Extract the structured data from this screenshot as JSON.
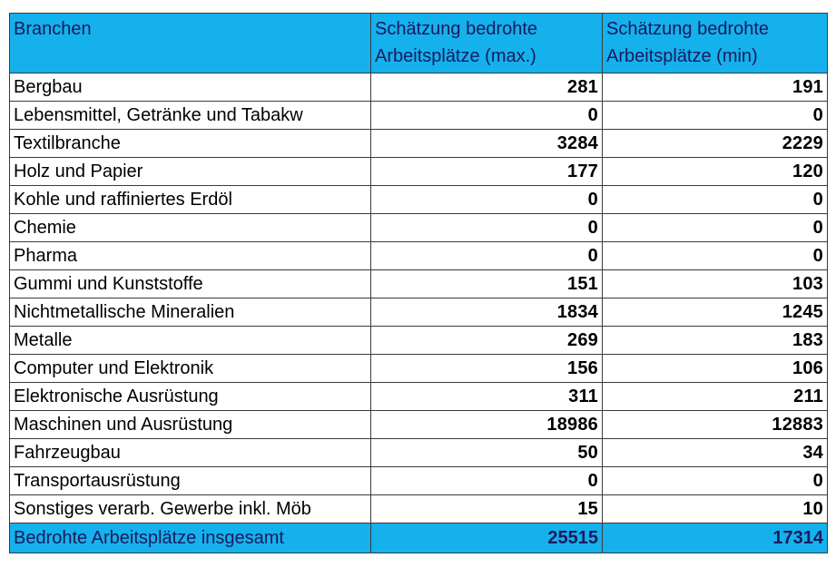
{
  "table": {
    "headers": [
      "Branchen",
      "Schätzung bedrohte Arbeitsplätze (max.)",
      "Schätzung bedrohte Arbeitsplätze (min)"
    ],
    "rows": [
      {
        "branche": "Bergbau",
        "max": "281",
        "min": "191"
      },
      {
        "branche": "Lebensmittel, Getränke und Tabakw",
        "max": "0",
        "min": "0"
      },
      {
        "branche": "Textilbranche",
        "max": "3284",
        "min": "2229"
      },
      {
        "branche": "Holz und Papier",
        "max": "177",
        "min": "120"
      },
      {
        "branche": "Kohle und raffiniertes Erdöl",
        "max": "0",
        "min": "0"
      },
      {
        "branche": "Chemie",
        "max": "0",
        "min": "0"
      },
      {
        "branche": "Pharma",
        "max": "0",
        "min": "0"
      },
      {
        "branche": "Gummi und Kunststoffe",
        "max": "151",
        "min": "103"
      },
      {
        "branche": "Nichtmetallische Mineralien",
        "max": "1834",
        "min": "1245"
      },
      {
        "branche": "Metalle",
        "max": "269",
        "min": "183"
      },
      {
        "branche": "Computer und Elektronik",
        "max": "156",
        "min": "106"
      },
      {
        "branche": "Elektronische Ausrüstung",
        "max": "311",
        "min": "211"
      },
      {
        "branche": "Maschinen und Ausrüstung",
        "max": "18986",
        "min": "12883"
      },
      {
        "branche": "Fahrzeugbau",
        "max": "50",
        "min": "34"
      },
      {
        "branche": "Transportausrüstung",
        "max": "0",
        "min": "0"
      },
      {
        "branche": "Sonstiges verarb. Gewerbe inkl. Möb",
        "max": "15",
        "min": "10"
      }
    ],
    "total": {
      "label": "Bedrohte Arbeitsplätze insgesamt",
      "max": "25515",
      "min": "17314"
    }
  },
  "colors": {
    "header_bg": "#15b1ec",
    "header_text": "#1a1a5e",
    "border": "#3a3a3a"
  }
}
